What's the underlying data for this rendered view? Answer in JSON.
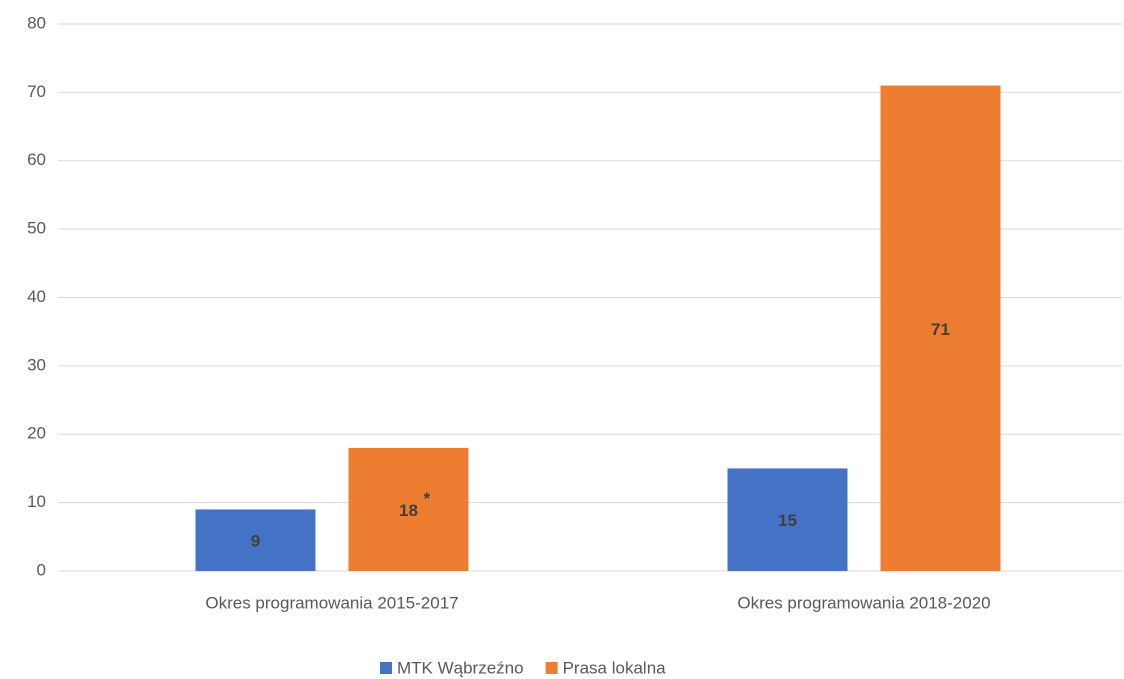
{
  "chart_data": {
    "type": "bar",
    "categories": [
      "Okres programowania 2015-2017",
      "Okres programowania 2018-2020"
    ],
    "series": [
      {
        "name": "MTK Wąbrzeźno",
        "color": "#4472c4",
        "values": [
          9,
          15
        ]
      },
      {
        "name": "Prasa lokalna",
        "color": "#ed7d31",
        "values": [
          18,
          71
        ]
      }
    ],
    "annotations": [
      {
        "text": "*",
        "series": 1,
        "index": 0
      }
    ],
    "ylim": [
      0,
      80
    ],
    "yticks": [
      0,
      10,
      20,
      30,
      40,
      50,
      60,
      70,
      80
    ],
    "grid": true,
    "legend": "bottom"
  }
}
